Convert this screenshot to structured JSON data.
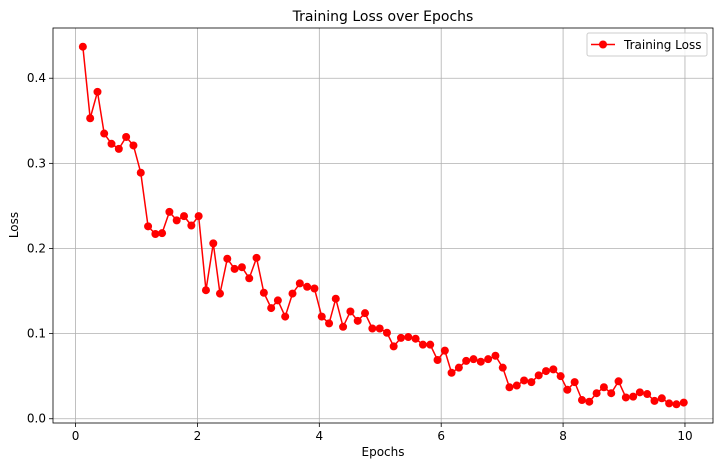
{
  "chart_data": {
    "type": "line",
    "title": "Training Loss over Epochs",
    "xlabel": "Epochs",
    "ylabel": "Loss",
    "xlim": [
      -0.37,
      10.46
    ],
    "ylim": [
      -0.005,
      0.459
    ],
    "xticks": [
      0,
      2,
      4,
      6,
      8,
      10
    ],
    "xtick_labels": [
      "0",
      "2",
      "4",
      "6",
      "8",
      "10"
    ],
    "yticks": [
      0.0,
      0.1,
      0.2,
      0.3,
      0.4
    ],
    "ytick_labels": [
      "0.0",
      "0.1",
      "0.2",
      "0.3",
      "0.4"
    ],
    "grid": true,
    "legend_position": "top-right",
    "series": [
      {
        "name": "Training Loss",
        "color": "#ff0000",
        "marker": "circle",
        "x": [
          0.12,
          0.24,
          0.36,
          0.47,
          0.59,
          0.71,
          0.83,
          0.95,
          1.07,
          1.19,
          1.31,
          1.42,
          1.54,
          1.66,
          1.78,
          1.9,
          2.02,
          2.14,
          2.26,
          2.37,
          2.49,
          2.61,
          2.73,
          2.85,
          2.97,
          3.09,
          3.21,
          3.32,
          3.44,
          3.56,
          3.68,
          3.8,
          3.92,
          4.04,
          4.16,
          4.27,
          4.39,
          4.51,
          4.63,
          4.75,
          4.87,
          4.99,
          5.11,
          5.22,
          5.34,
          5.46,
          5.58,
          5.7,
          5.82,
          5.94,
          6.06,
          6.17,
          6.29,
          6.41,
          6.53,
          6.65,
          6.77,
          6.89,
          7.01,
          7.12,
          7.24,
          7.36,
          7.48,
          7.6,
          7.72,
          7.84,
          7.96,
          8.07,
          8.19,
          8.31,
          8.43,
          8.55,
          8.67,
          8.79,
          8.91,
          9.03,
          9.15,
          9.26,
          9.38,
          9.5,
          9.62,
          9.74,
          9.86,
          9.98
        ],
        "values": [
          0.437,
          0.353,
          0.384,
          0.335,
          0.323,
          0.317,
          0.331,
          0.321,
          0.289,
          0.226,
          0.217,
          0.218,
          0.243,
          0.233,
          0.238,
          0.227,
          0.238,
          0.151,
          0.206,
          0.147,
          0.188,
          0.176,
          0.178,
          0.165,
          0.189,
          0.148,
          0.13,
          0.139,
          0.12,
          0.147,
          0.159,
          0.155,
          0.153,
          0.12,
          0.112,
          0.141,
          0.108,
          0.126,
          0.115,
          0.124,
          0.106,
          0.106,
          0.101,
          0.085,
          0.095,
          0.096,
          0.094,
          0.087,
          0.087,
          0.069,
          0.08,
          0.054,
          0.06,
          0.068,
          0.07,
          0.067,
          0.07,
          0.074,
          0.06,
          0.037,
          0.039,
          0.045,
          0.043,
          0.051,
          0.056,
          0.058,
          0.05,
          0.034,
          0.043,
          0.022,
          0.02,
          0.03,
          0.037,
          0.03,
          0.044,
          0.025,
          0.026,
          0.031,
          0.029,
          0.021,
          0.024,
          0.018,
          0.017,
          0.019
        ]
      }
    ]
  }
}
